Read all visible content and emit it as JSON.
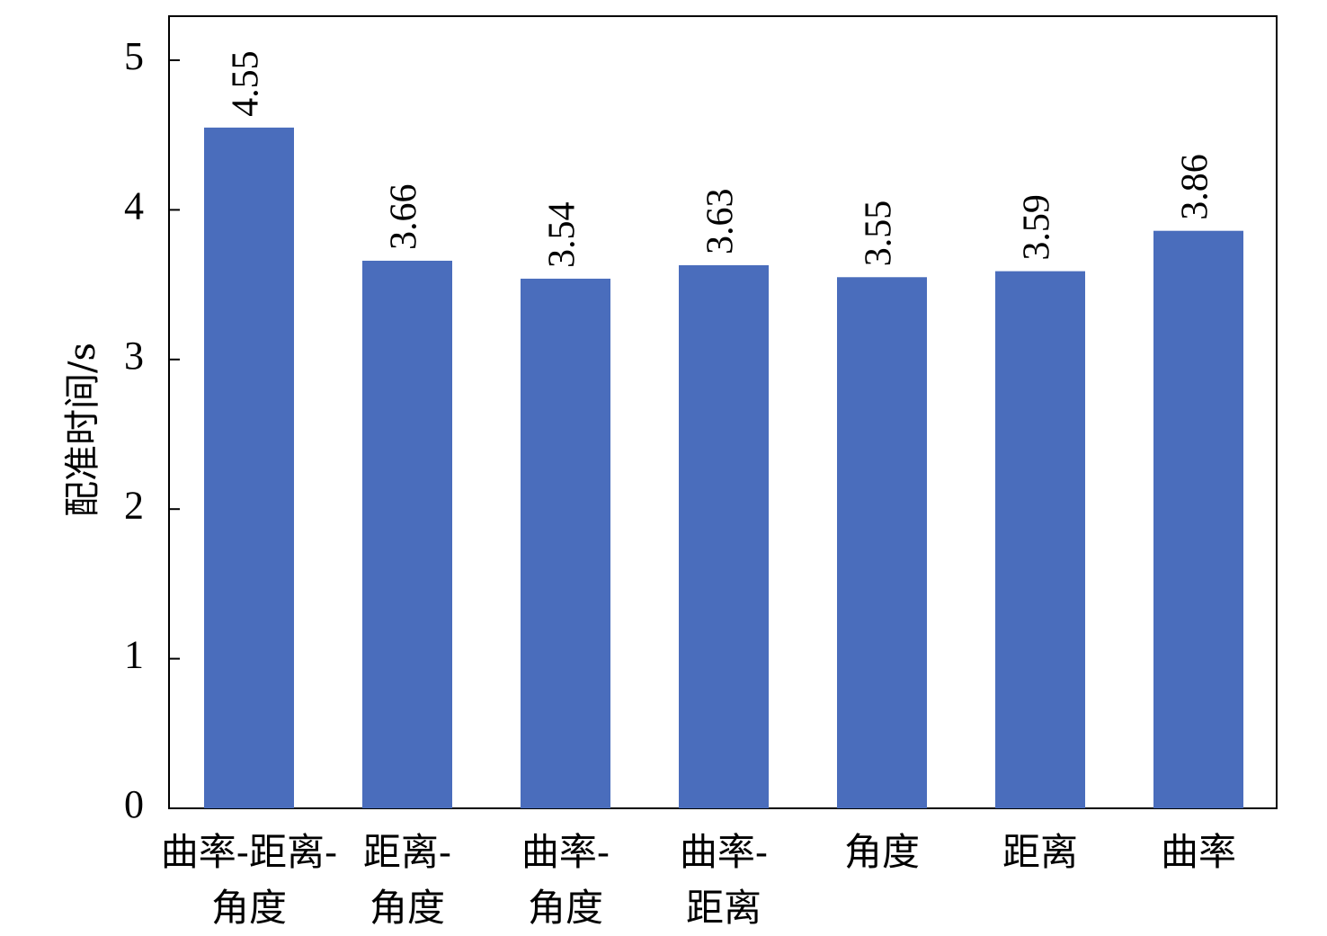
{
  "chart_data": {
    "type": "bar",
    "categories": [
      [
        "曲率-距离-",
        "角度"
      ],
      [
        "距离-",
        "角度"
      ],
      [
        "曲率-",
        "角度"
      ],
      [
        "曲率-",
        "距离"
      ],
      [
        "角度"
      ],
      [
        "距离"
      ],
      [
        "曲率"
      ]
    ],
    "values": [
      4.55,
      3.66,
      3.54,
      3.63,
      3.55,
      3.59,
      3.86
    ],
    "value_labels": [
      "4.55",
      "3.66",
      "3.54",
      "3.63",
      "3.55",
      "3.59",
      "3.86"
    ],
    "ylabel": "配准时间/s",
    "ylim": [
      0,
      5.2
    ],
    "yticks": [
      0,
      1,
      2,
      3,
      4,
      5
    ],
    "bar_color": "#4a6dbc",
    "grid": false,
    "legend": "none"
  }
}
